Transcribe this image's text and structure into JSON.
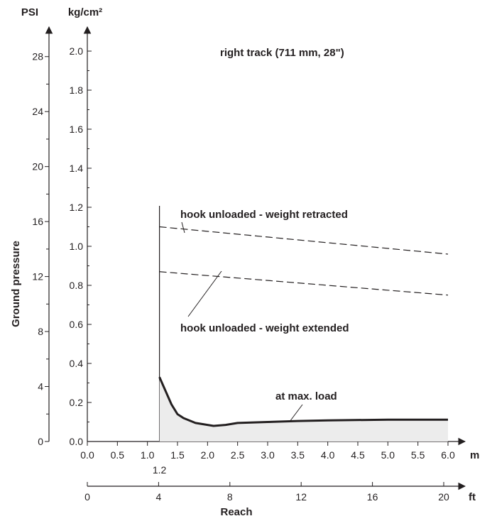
{
  "chart_data": {
    "type": "line",
    "title": "right track (711 mm, 28\")",
    "ylabel": "Ground pressure",
    "xlabel": "Reach",
    "y_axes": {
      "psi": {
        "label": "PSI",
        "ticks": [
          "0",
          "4",
          "8",
          "12",
          "16",
          "20",
          "24",
          "28"
        ],
        "range": [
          0,
          28.4
        ]
      },
      "kgcm2": {
        "label": "kg/cm²",
        "ticks": [
          "0.0",
          "0.2",
          "0.4",
          "0.6",
          "0.8",
          "1.0",
          "1.2",
          "1.4",
          "1.6",
          "1.8",
          "2.0"
        ],
        "range": [
          0,
          2.0
        ]
      }
    },
    "x_axes": {
      "m": {
        "unit": "m",
        "ticks": [
          "0.0",
          "0.5",
          "1.0",
          "1.5",
          "2.0",
          "2.5",
          "3.0",
          "3.5",
          "4.0",
          "4.5",
          "5.0",
          "5.5",
          "6.0"
        ],
        "extra_tick": "1.2",
        "range": [
          0,
          6.0
        ]
      },
      "ft": {
        "unit": "ft",
        "ticks": [
          "0",
          "4",
          "8",
          "12",
          "16",
          "20"
        ],
        "range": [
          0,
          20
        ]
      }
    },
    "vertical_line": {
      "x": 1.2,
      "y_top": 1.2
    },
    "series": [
      {
        "name": "hook unloaded - weight retracted",
        "style": "dashed",
        "x": [
          1.2,
          6.0
        ],
        "y": [
          1.1,
          0.96
        ]
      },
      {
        "name": "hook unloaded - weight extended",
        "style": "dashed",
        "x": [
          1.2,
          6.0
        ],
        "y": [
          0.87,
          0.75
        ]
      },
      {
        "name": "at max. load",
        "style": "solid-filled",
        "x": [
          1.2,
          1.3,
          1.4,
          1.5,
          1.6,
          1.8,
          2.0,
          2.1,
          2.3,
          2.5,
          3.0,
          3.5,
          4.0,
          5.0,
          6.0
        ],
        "y": [
          0.33,
          0.26,
          0.19,
          0.14,
          0.12,
          0.095,
          0.085,
          0.08,
          0.085,
          0.095,
          0.1,
          0.105,
          0.108,
          0.112,
          0.112
        ]
      }
    ]
  }
}
